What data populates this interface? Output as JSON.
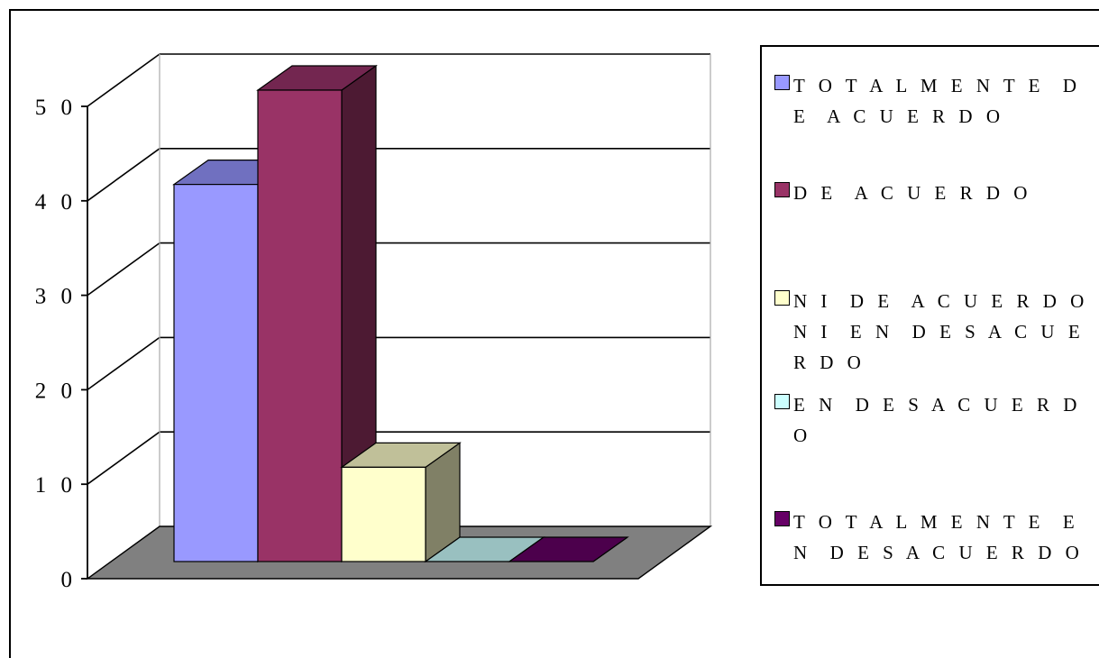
{
  "chart_data": {
    "type": "bar",
    "categories": [
      "T O T A L M E N T E  D E  A C U E R D O",
      "D E  A C U E R D O",
      "N I  D E  A C U E R D O  N I  E N  D E S A C U E R D O",
      "E N  D E S A C U E R D O",
      "T O T A L M E N T E  E N  D E S A C U E R D O"
    ],
    "values": [
      40,
      50,
      10,
      0,
      0
    ],
    "colors": {
      "front": [
        "#9999ff",
        "#993366",
        "#ffffcc",
        "#ccffff",
        "#660066"
      ],
      "top": [
        "#7070c0",
        "#732650",
        "#c0c099",
        "#99c0c0",
        "#4c004c"
      ],
      "side": [
        "#6666aa",
        "#4d1a33",
        "#808066",
        "#668080",
        "#330033"
      ]
    },
    "ylim": [
      0,
      50
    ],
    "yticks": [
      "0",
      "1 0",
      "2 0",
      "3 0",
      "4 0",
      "5 0"
    ],
    "grid": true,
    "legend": "right",
    "title": "",
    "xlabel": "",
    "ylabel": "",
    "floor_color": "#808080"
  }
}
